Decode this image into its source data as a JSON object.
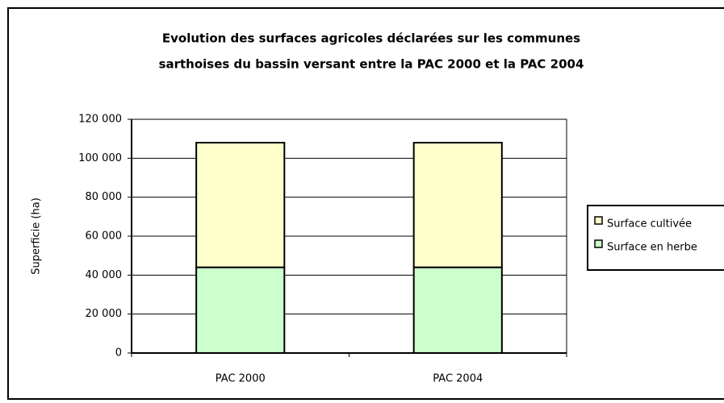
{
  "chart_data": {
    "type": "stacked_bar",
    "title": [
      "Evolution des surfaces agricoles déclarées sur les communes",
      "sarthoises du bassin versant entre la PAC 2000 et la PAC 2004"
    ],
    "y_label": "Superficie (ha)",
    "categories": [
      "PAC 2000",
      "PAC 2004"
    ],
    "series": [
      {
        "name": "Surface en herbe",
        "color": "#ccffcc",
        "values": [
          44000,
          44000
        ]
      },
      {
        "name": "Surface cultivée",
        "color": "#ffffcc",
        "values": [
          64000,
          64000
        ]
      }
    ],
    "ylim": [
      0,
      120000
    ],
    "yticks": [
      0,
      {
        "value": 20000,
        "label": "20 000"
      },
      {
        "value": 40000,
        "label": "40 000"
      },
      {
        "value": 60000,
        "label": "60 000"
      },
      {
        "value": 80000,
        "label": "80 000"
      },
      {
        "value": 100000,
        "label": "100 000"
      },
      {
        "value": 120000,
        "label": "120 000"
      }
    ],
    "grid": true,
    "legend": "right"
  }
}
